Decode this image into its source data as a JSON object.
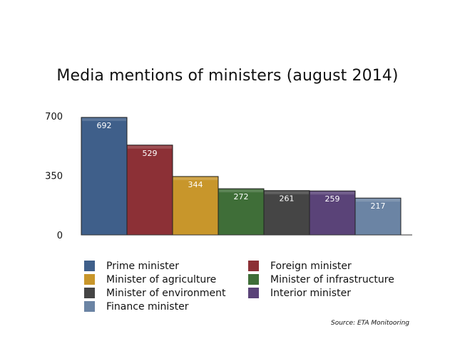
{
  "chart_data": {
    "type": "bar",
    "title": "Media mentions of ministers (august 2014)",
    "xlabel": "",
    "ylabel": "",
    "ylim": [
      0,
      700
    ],
    "yticks": [
      "0",
      "350",
      "700"
    ],
    "grid": false,
    "legend_position": "bottom",
    "series": [
      {
        "name": "Prime minister",
        "value": 692,
        "label": "692",
        "color": "#3f5f8a"
      },
      {
        "name": "Foreign minister",
        "value": 529,
        "label": "529",
        "color": "#8c3036"
      },
      {
        "name": "Minister of agriculture",
        "value": 344,
        "label": "344",
        "color": "#c8962b"
      },
      {
        "name": "Minister of infrastructure",
        "value": 272,
        "label": "272",
        "color": "#3f6e38"
      },
      {
        "name": "Minister of environment",
        "value": 261,
        "label": "261",
        "color": "#454545"
      },
      {
        "name": "Interior minister",
        "value": 259,
        "label": "259",
        "color": "#5a4378"
      },
      {
        "name": "Finance minister",
        "value": 217,
        "label": "217",
        "color": "#6b84a4"
      }
    ],
    "legend_order": [
      "Prime minister",
      "Foreign minister",
      "Minister of agriculture",
      "Minister of infrastructure",
      "Minister of environment",
      "Interior minister",
      "Finance minister"
    ],
    "source": "Source: ETA Monitooring"
  }
}
